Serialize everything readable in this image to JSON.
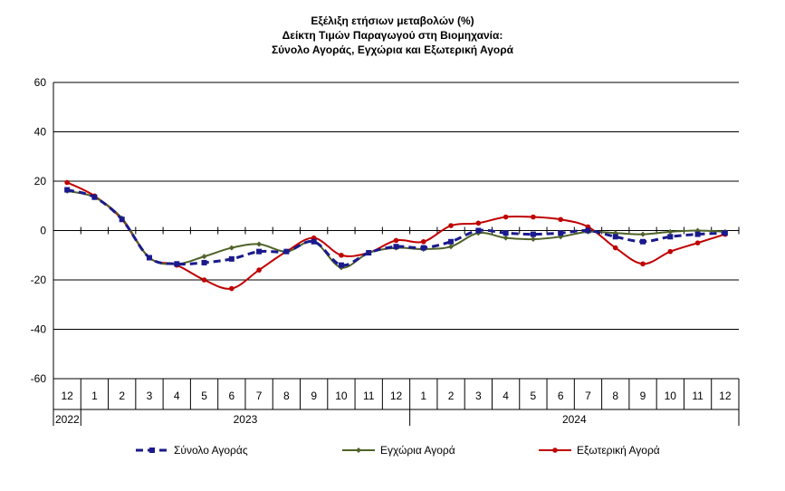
{
  "chart_data": {
    "type": "line",
    "title_lines": [
      "Εξέλιξη ετήσιων μεταβολών (%)",
      "Δείκτη Τιμών Παραγωγού στη Βιομηχανία:",
      "Σύνολο Αγοράς, Εγχώρια και Εξωτερική Αγορά"
    ],
    "x": [
      "12",
      "1",
      "2",
      "3",
      "4",
      "5",
      "6",
      "7",
      "8",
      "9",
      "10",
      "11",
      "12",
      "1",
      "2",
      "3",
      "4",
      "5",
      "6",
      "7",
      "8",
      "9",
      "10",
      "11",
      "12"
    ],
    "year_labels": [
      {
        "label": "2022",
        "start": 0,
        "end": 0
      },
      {
        "label": "2023",
        "start": 1,
        "end": 12
      },
      {
        "label": "2024",
        "start": 13,
        "end": 24
      }
    ],
    "ylim": [
      -60,
      60
    ],
    "yticks": [
      60,
      40,
      20,
      0,
      -20,
      -40,
      -60
    ],
    "grid": true,
    "legend_position": "bottom",
    "series": [
      {
        "name": "Σύνολο Αγοράς",
        "color": "#1a1a8c",
        "style": "dashed",
        "marker": "square",
        "values": [
          16.5,
          13.5,
          4.5,
          -11,
          -13.5,
          -13,
          -11.5,
          -8.5,
          -8.5,
          -4.5,
          -14,
          -9,
          -6.5,
          -7,
          -4.5,
          0,
          -1,
          -1.5,
          -1,
          0,
          -2.5,
          -4.5,
          -2.5,
          -1.5,
          -1
        ]
      },
      {
        "name": "Εγχώρια Αγορά",
        "color": "#4f6228",
        "style": "solid",
        "marker": "diamond",
        "values": [
          16,
          13.5,
          5,
          -11,
          -13.5,
          -10.5,
          -7,
          -5.5,
          -8.5,
          -4.5,
          -15,
          -9,
          -7,
          -7.5,
          -6.5,
          -1,
          -3,
          -3.5,
          -2.5,
          -0.5,
          -1,
          -1.5,
          -0.5,
          0,
          -0.5
        ]
      },
      {
        "name": "Εξωτερική Αγορά",
        "color": "#c00000",
        "style": "solid",
        "marker": "circle",
        "values": [
          19.5,
          14,
          4.5,
          -11,
          -14,
          -20,
          -23.5,
          -16,
          -8.5,
          -3,
          -10,
          -9,
          -4,
          -4.5,
          2,
          3,
          5.5,
          5.5,
          4.5,
          1.5,
          -7,
          -13.5,
          -8.5,
          -5,
          -1.5
        ]
      }
    ]
  }
}
